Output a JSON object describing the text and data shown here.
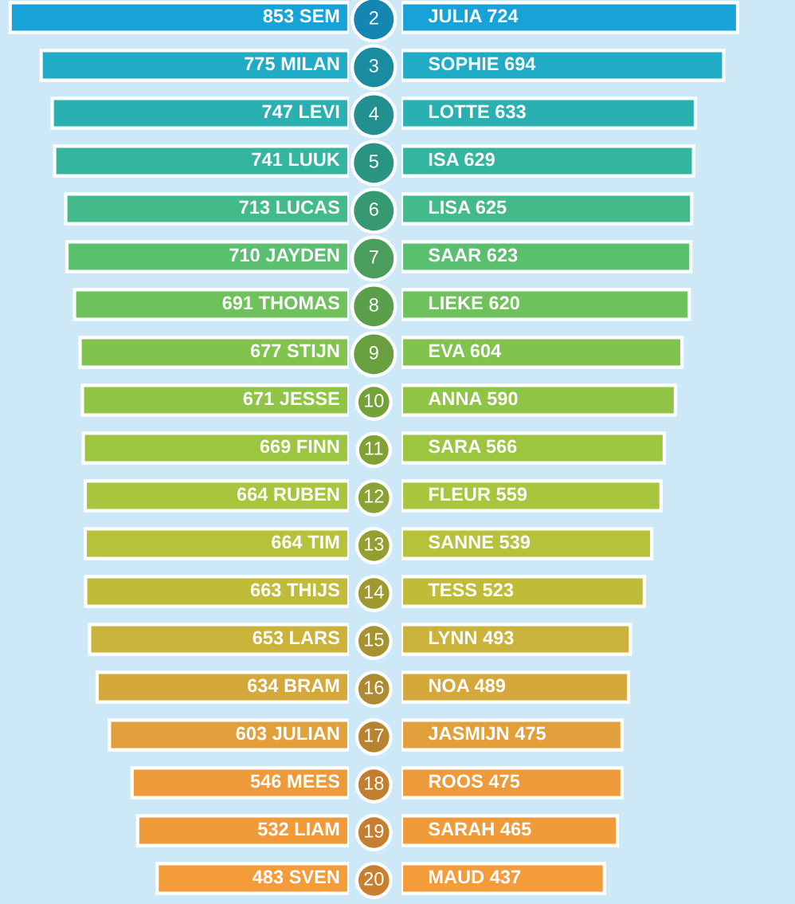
{
  "chart_data": [
    {
      "type": "bar",
      "orientation": "horizontal",
      "categories": [
        null,
        null,
        null,
        null,
        null,
        null,
        null,
        null,
        null,
        null,
        null,
        null,
        null,
        null,
        null,
        null,
        null,
        null,
        null
      ],
      "values": [
        853,
        775,
        747,
        741,
        713,
        710,
        691,
        677,
        671,
        669,
        664,
        664,
        663,
        653,
        634,
        603,
        546,
        532,
        483
      ],
      "value_labels": [
        "853 SEM",
        "775 MILAN",
        "747 LEVI",
        "741 LUUK",
        "713 LUCAS",
        "710 JAYDEN",
        "691 THOMAS",
        "677 STIJN",
        "671 JESSE",
        "669 FINN",
        "664 RUBEN",
        "664 TIM",
        "663 THIJS",
        "653 LARS",
        "634 BRAM",
        "603 JULIAN",
        "546 MEES",
        "532 LIAM",
        "483 SVEN"
      ],
      "colors": [
        "#17a3d8",
        "#20abc6",
        "#2ab0b0",
        "#33b59f",
        "#43ba8a",
        "#5bbf70",
        "#6fc15b",
        "#80c34d",
        "#8fc446",
        "#9cc540",
        "#a9c53d",
        "#b5c23a",
        "#c0bb39",
        "#cbb23a",
        "#d5a83b",
        "#e1a03b",
        "#ec9a3a",
        "#f19a3a",
        "#f49b3a"
      ],
      "tick_labels": false
    },
    {
      "type": "bar",
      "orientation": "horizontal",
      "categories": [
        "2",
        "3",
        "4",
        "5",
        "6",
        "7",
        "8",
        "9",
        "10",
        "11",
        "12",
        "13",
        "14",
        "15",
        "16",
        "17",
        "18",
        "19",
        "20"
      ],
      "values": [
        724,
        694,
        633,
        629,
        625,
        623,
        620,
        604,
        590,
        566,
        559,
        539,
        523,
        493,
        489,
        475,
        475,
        465,
        437
      ],
      "value_labels": [
        "JULIA 724",
        "SOPHIE 694",
        "LOTTE 633",
        "ISA 629",
        "LISA 625",
        "SAAR 623",
        "LIEKE 620",
        "EVA 604",
        "ANNA 590",
        "SARA 566",
        "FLEUR 559",
        "SANNE 539",
        "TESS 523",
        "LYNN 493",
        "NOA 489",
        "JASMIJN 475",
        "ROOS 475",
        "SARAH 465",
        "MAUD 437"
      ],
      "colors": [
        "#17a3d8",
        "#20abc6",
        "#2ab0b0",
        "#33b59f",
        "#43ba8a",
        "#5bbf70",
        "#6fc15b",
        "#80c34d",
        "#8fc446",
        "#9cc540",
        "#a9c53d",
        "#b5c23a",
        "#c0bb39",
        "#cbb23a",
        "#d5a83b",
        "#e1a03b",
        "#ec9a3a",
        "#f19a3a",
        "#f49b3a"
      ],
      "tick_labels": "y"
    }
  ]
}
